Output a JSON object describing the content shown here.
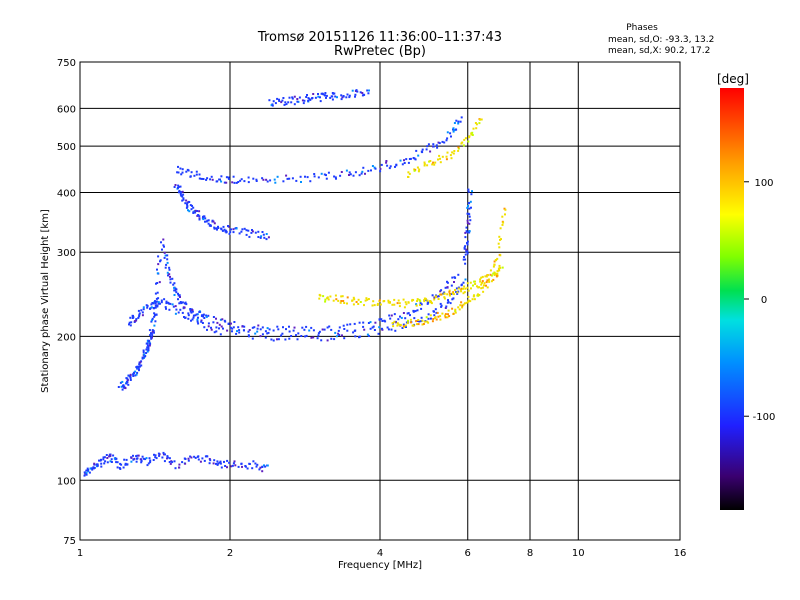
{
  "chart_data": {
    "type": "scatter",
    "title": "Tromsø 20151126 11:36:00–11:37:43",
    "subtitle": "RwPretec (Bp)",
    "xlabel": "Frequency [MHz]",
    "ylabel": "Stationary phase Virtual Height [km]",
    "x_scale": "log",
    "y_scale": "log",
    "xlim": [
      1,
      16
    ],
    "ylim": [
      75,
      750
    ],
    "x_ticks": [
      1,
      2,
      4,
      6,
      8,
      10,
      16
    ],
    "x_tick_labels": [
      "1",
      "2",
      "4",
      "6",
      "8",
      "10",
      "16"
    ],
    "y_ticks": [
      75,
      100,
      200,
      300,
      400,
      500,
      600,
      750
    ],
    "y_tick_labels": [
      "75",
      "100",
      "200",
      "300",
      "400",
      "500",
      "600",
      "750"
    ],
    "grid": true,
    "stats_header": "Phases",
    "stats": [
      "mean, sd,O: -93.3, 13.2",
      "mean, sd,X:  90.2, 17.2"
    ],
    "colorbar": {
      "label": "[deg]",
      "range": [
        -180,
        180
      ],
      "ticks": [
        100,
        0,
        -100
      ],
      "tick_labels": [
        "100",
        "0",
        "-100"
      ]
    },
    "colors": {
      "o_mode": "#1e3cff",
      "x_mode": "#f0e000",
      "grid": "#000000"
    },
    "series": [
      {
        "mode": "O",
        "traces": [
          {
            "desc_x": [
              1.02,
              1.05,
              1.1,
              1.15,
              1.2,
              1.28,
              1.35,
              1.45,
              1.55,
              1.7,
              1.85,
              2.0,
              2.2,
              2.4
            ],
            "y": [
              104,
              106,
              110,
              112,
              108,
              112,
              110,
              114,
              108,
              112,
              110,
              108,
              108,
              106
            ]
          },
          {
            "x": [
              1.2,
              1.23,
              1.26,
              1.3,
              1.33,
              1.36,
              1.38,
              1.4,
              1.42,
              1.44
            ],
            "y": [
              158,
              160,
              165,
              172,
              180,
              190,
              200,
              215,
              240,
              300
            ]
          },
          {
            "x": [
              1.45,
              1.5,
              1.55,
              1.6,
              1.7,
              1.8,
              2.0,
              2.3,
              2.7,
              3.2,
              3.8,
              4.3,
              4.8,
              5.3,
              5.7
            ],
            "y": [
              320,
              275,
              250,
              235,
              225,
              218,
              212,
              208,
              207,
              208,
              212,
              220,
              232,
              248,
              270
            ]
          },
          {
            "x": [
              1.25,
              1.3,
              1.38,
              1.45,
              1.55,
              1.7,
              1.9,
              2.2,
              2.6,
              3.2,
              3.8,
              4.4,
              5.0,
              5.5,
              5.9
            ],
            "y": [
              215,
              222,
              232,
              238,
              228,
              215,
              207,
              202,
              200,
              201,
              205,
              212,
              222,
              238,
              262
            ]
          },
          {
            "x": [
              5.9,
              5.95,
              6.0,
              6.05
            ],
            "y": [
              290,
              320,
              360,
              410
            ]
          },
          {
            "x": [
              1.55,
              1.6,
              1.65,
              1.72,
              1.8,
              1.9,
              2.0,
              2.2,
              2.4
            ],
            "y": [
              420,
              395,
              375,
              360,
              348,
              340,
              335,
              330,
              325
            ]
          },
          {
            "x": [
              1.55,
              1.7,
              1.9,
              2.1,
              2.5,
              3.0,
              3.5,
              4.0,
              4.5,
              5.0,
              5.5,
              5.8
            ],
            "y": [
              450,
              438,
              428,
              425,
              428,
              432,
              440,
              455,
              470,
              495,
              530,
              575
            ]
          },
          {
            "x": [
              2.4,
              2.6,
              2.8,
              3.0,
              3.2,
              3.5,
              3.8
            ],
            "y": [
              620,
              625,
              630,
              635,
              640,
              645,
              650
            ]
          }
        ]
      },
      {
        "mode": "X",
        "traces": [
          {
            "x": [
              3.0,
              3.3,
              3.6,
              4.0,
              4.4,
              4.8,
              5.2,
              5.6,
              6.0,
              6.4,
              6.8,
              7.0
            ],
            "y": [
              242,
              240,
              238,
              236,
              235,
              238,
              242,
              248,
              255,
              262,
              270,
              280
            ]
          },
          {
            "x": [
              4.2,
              4.6,
              5.0,
              5.4,
              5.8,
              6.2,
              6.6,
              6.9,
              7.1
            ],
            "y": [
              212,
              214,
              218,
              224,
              232,
              244,
              262,
              300,
              380
            ]
          },
          {
            "x": [
              4.5,
              5.0,
              5.5,
              6.0,
              6.4
            ],
            "y": [
              440,
              460,
              480,
              520,
              580
            ]
          }
        ]
      }
    ]
  }
}
